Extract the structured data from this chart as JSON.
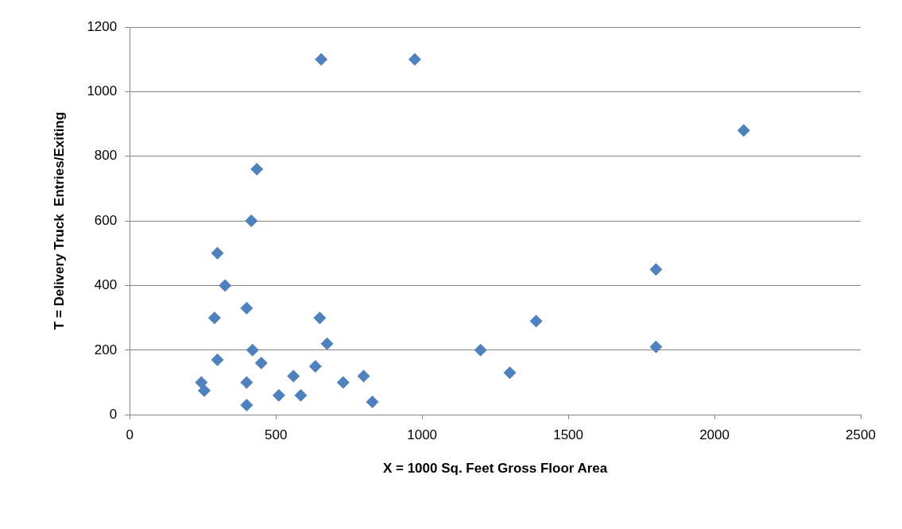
{
  "chart_data": {
    "type": "scatter",
    "xlabel": "X = 1000 Sq. Feet Gross Floor Area",
    "ylabel": "T = Delivery Truck  Entries/Exiting",
    "x": [
      655,
      975,
      2100,
      435,
      416,
      300,
      326,
      400,
      290,
      650,
      1800,
      1390,
      1800,
      1200,
      675,
      420,
      300,
      450,
      635,
      560,
      800,
      1300,
      245,
      255,
      400,
      730,
      510,
      585,
      830,
      400
    ],
    "series": [
      {
        "color": "#4f81bd",
        "values": [
          1100,
          1100,
          880,
          760,
          600,
          500,
          400,
          330,
          300,
          300,
          450,
          290,
          210,
          200,
          220,
          200,
          170,
          160,
          150,
          120,
          120,
          130,
          100,
          75,
          100,
          100,
          60,
          60,
          40,
          30
        ]
      }
    ],
    "xlim": [
      0,
      2500
    ],
    "xticks": [
      0,
      500,
      1000,
      1500,
      2000,
      2500
    ],
    "ylim": [
      0,
      1200
    ],
    "yticks": [
      0,
      200,
      400,
      600,
      800,
      1000,
      1200
    ],
    "grid": "y",
    "marker": "diamond",
    "legend": false
  }
}
